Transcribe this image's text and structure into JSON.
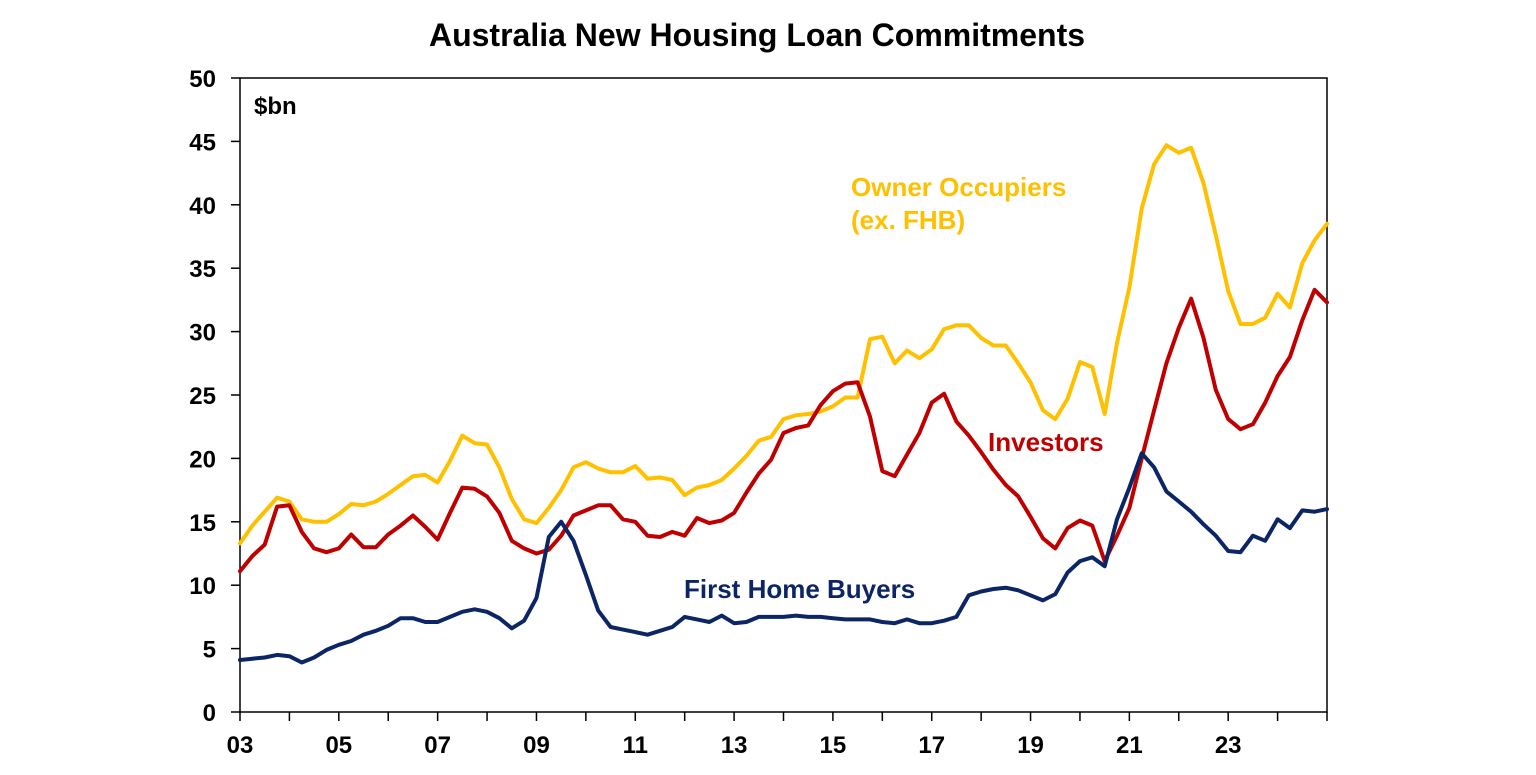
{
  "chart_data": {
    "type": "line",
    "title": "Australia New Housing Loan Commitments",
    "unit_label": "$bn",
    "xlabel": "",
    "ylabel": "",
    "x_tick_labels": [
      "03",
      "05",
      "07",
      "09",
      "11",
      "13",
      "15",
      "17",
      "19",
      "21",
      "23"
    ],
    "x_tick_years": [
      2003,
      2005,
      2007,
      2009,
      2011,
      2013,
      2015,
      2017,
      2019,
      2021,
      2023
    ],
    "xlim": [
      2003,
      2025
    ],
    "ylim": [
      0,
      50
    ],
    "y_ticks": [
      0,
      5,
      10,
      15,
      20,
      25,
      30,
      35,
      40,
      45,
      50
    ],
    "grid": false,
    "legend": "none (inline series labels)",
    "series": [
      {
        "name": "Owner Occupiers (ex. FHB)",
        "label_lines": [
          "Owner Occupiers",
          "(ex. FHB)"
        ],
        "color": "#FFC000",
        "x": [
          2003.0,
          2003.25,
          2003.5,
          2003.75,
          2004.0,
          2004.25,
          2004.5,
          2004.75,
          2005.0,
          2005.25,
          2005.5,
          2005.75,
          2006.0,
          2006.25,
          2006.5,
          2006.75,
          2007.0,
          2007.25,
          2007.5,
          2007.75,
          2008.0,
          2008.25,
          2008.5,
          2008.75,
          2009.0,
          2009.25,
          2009.5,
          2009.75,
          2010.0,
          2010.25,
          2010.5,
          2010.75,
          2011.0,
          2011.25,
          2011.5,
          2011.75,
          2012.0,
          2012.25,
          2012.5,
          2012.75,
          2013.0,
          2013.25,
          2013.5,
          2013.75,
          2014.0,
          2014.25,
          2014.5,
          2014.75,
          2015.0,
          2015.25,
          2015.5,
          2015.75,
          2016.0,
          2016.25,
          2016.5,
          2016.75,
          2017.0,
          2017.25,
          2017.5,
          2017.75,
          2018.0,
          2018.25,
          2018.5,
          2018.75,
          2019.0,
          2019.25,
          2019.5,
          2019.75,
          2020.0,
          2020.25,
          2020.5,
          2020.75,
          2021.0,
          2021.25,
          2021.5,
          2021.75,
          2022.0,
          2022.25,
          2022.5,
          2022.75,
          2023.0,
          2023.25,
          2023.5,
          2023.75,
          2024.0,
          2024.25,
          2024.5,
          2024.75,
          2025.0
        ],
        "values": [
          13.3,
          14.7,
          15.8,
          16.9,
          16.6,
          15.2,
          15.0,
          15.0,
          15.6,
          16.4,
          16.3,
          16.6,
          17.2,
          17.9,
          18.6,
          18.7,
          18.1,
          19.8,
          21.8,
          21.2,
          21.1,
          19.3,
          16.8,
          15.2,
          14.9,
          16.1,
          17.5,
          19.3,
          19.7,
          19.2,
          18.9,
          18.9,
          19.4,
          18.4,
          18.5,
          18.3,
          17.1,
          17.7,
          17.9,
          18.3,
          19.2,
          20.2,
          21.4,
          21.7,
          23.1,
          23.4,
          23.5,
          23.7,
          24.1,
          24.8,
          24.8,
          29.4,
          29.6,
          27.5,
          28.5,
          27.9,
          28.6,
          30.2,
          30.5,
          30.5,
          29.5,
          28.9,
          28.9,
          27.5,
          26.0,
          23.8,
          23.1,
          24.7,
          27.6,
          27.2,
          23.5,
          29.1,
          33.5,
          39.7,
          43.2,
          44.7,
          44.1,
          44.5,
          41.7,
          37.6,
          33.2,
          30.6,
          30.6,
          31.1,
          33.0,
          31.9,
          35.4,
          37.2,
          38.5
        ]
      },
      {
        "name": "Investors",
        "label_lines": [
          "Investors"
        ],
        "color": "#C00000",
        "x": [
          2003.0,
          2003.25,
          2003.5,
          2003.75,
          2004.0,
          2004.25,
          2004.5,
          2004.75,
          2005.0,
          2005.25,
          2005.5,
          2005.75,
          2006.0,
          2006.25,
          2006.5,
          2006.75,
          2007.0,
          2007.25,
          2007.5,
          2007.75,
          2008.0,
          2008.25,
          2008.5,
          2008.75,
          2009.0,
          2009.25,
          2009.5,
          2009.75,
          2010.0,
          2010.25,
          2010.5,
          2010.75,
          2011.0,
          2011.25,
          2011.5,
          2011.75,
          2012.0,
          2012.25,
          2012.5,
          2012.75,
          2013.0,
          2013.25,
          2013.5,
          2013.75,
          2014.0,
          2014.25,
          2014.5,
          2014.75,
          2015.0,
          2015.25,
          2015.5,
          2015.75,
          2016.0,
          2016.25,
          2016.5,
          2016.75,
          2017.0,
          2017.25,
          2017.5,
          2017.75,
          2018.0,
          2018.25,
          2018.5,
          2018.75,
          2019.0,
          2019.25,
          2019.5,
          2019.75,
          2020.0,
          2020.25,
          2020.5,
          2020.75,
          2021.0,
          2021.25,
          2021.5,
          2021.75,
          2022.0,
          2022.25,
          2022.5,
          2022.75,
          2023.0,
          2023.25,
          2023.5,
          2023.75,
          2024.0,
          2024.25,
          2024.5,
          2024.75,
          2025.0
        ],
        "values": [
          11.1,
          12.3,
          13.2,
          16.2,
          16.3,
          14.2,
          12.9,
          12.6,
          12.9,
          14.0,
          13.0,
          13.0,
          14.0,
          14.7,
          15.5,
          14.6,
          13.6,
          15.7,
          17.7,
          17.6,
          17.0,
          15.7,
          13.5,
          12.9,
          12.5,
          12.8,
          13.9,
          15.5,
          15.9,
          16.3,
          16.3,
          15.2,
          15.0,
          13.9,
          13.8,
          14.2,
          13.9,
          15.3,
          14.9,
          15.1,
          15.7,
          17.3,
          18.8,
          19.9,
          22.0,
          22.4,
          22.6,
          24.2,
          25.3,
          25.9,
          26.0,
          23.3,
          19.0,
          18.6,
          20.3,
          22.0,
          24.4,
          25.1,
          22.9,
          21.8,
          20.5,
          19.1,
          17.9,
          17.0,
          15.4,
          13.7,
          12.9,
          14.5,
          15.1,
          14.7,
          11.9,
          13.9,
          16.1,
          20.0,
          23.8,
          27.5,
          30.3,
          32.6,
          29.5,
          25.4,
          23.1,
          22.3,
          22.7,
          24.4,
          26.5,
          28.0,
          30.9,
          33.3,
          32.3
        ]
      },
      {
        "name": "First Home Buyers",
        "label_lines": [
          "First Home Buyers"
        ],
        "color": "#0B2565",
        "x": [
          2003.0,
          2003.25,
          2003.5,
          2003.75,
          2004.0,
          2004.25,
          2004.5,
          2004.75,
          2005.0,
          2005.25,
          2005.5,
          2005.75,
          2006.0,
          2006.25,
          2006.5,
          2006.75,
          2007.0,
          2007.25,
          2007.5,
          2007.75,
          2008.0,
          2008.25,
          2008.5,
          2008.75,
          2009.0,
          2009.25,
          2009.5,
          2009.75,
          2010.0,
          2010.25,
          2010.5,
          2010.75,
          2011.0,
          2011.25,
          2011.5,
          2011.75,
          2012.0,
          2012.25,
          2012.5,
          2012.75,
          2013.0,
          2013.25,
          2013.5,
          2013.75,
          2014.0,
          2014.25,
          2014.5,
          2014.75,
          2015.0,
          2015.25,
          2015.5,
          2015.75,
          2016.0,
          2016.25,
          2016.5,
          2016.75,
          2017.0,
          2017.25,
          2017.5,
          2017.75,
          2018.0,
          2018.25,
          2018.5,
          2018.75,
          2019.0,
          2019.25,
          2019.5,
          2019.75,
          2020.0,
          2020.25,
          2020.5,
          2020.75,
          2021.0,
          2021.25,
          2021.5,
          2021.75,
          2022.0,
          2022.25,
          2022.5,
          2022.75,
          2023.0,
          2023.25,
          2023.5,
          2023.75,
          2024.0,
          2024.25,
          2024.5,
          2024.75,
          2025.0
        ],
        "values": [
          4.1,
          4.2,
          4.3,
          4.5,
          4.4,
          3.9,
          4.3,
          4.9,
          5.3,
          5.6,
          6.1,
          6.4,
          6.8,
          7.4,
          7.4,
          7.1,
          7.1,
          7.5,
          7.9,
          8.1,
          7.9,
          7.4,
          6.6,
          7.2,
          9.0,
          13.8,
          15.0,
          13.5,
          10.8,
          8.0,
          6.7,
          6.5,
          6.3,
          6.1,
          6.4,
          6.7,
          7.5,
          7.3,
          7.1,
          7.6,
          7.0,
          7.1,
          7.5,
          7.5,
          7.5,
          7.6,
          7.5,
          7.5,
          7.4,
          7.3,
          7.3,
          7.3,
          7.1,
          7.0,
          7.3,
          7.0,
          7.0,
          7.2,
          7.5,
          9.2,
          9.5,
          9.7,
          9.8,
          9.6,
          9.2,
          8.8,
          9.3,
          11.0,
          11.9,
          12.2,
          11.5,
          15.2,
          17.7,
          20.4,
          19.3,
          17.4,
          16.6,
          15.8,
          14.8,
          13.9,
          12.7,
          12.6,
          13.9,
          13.5,
          15.2,
          14.5,
          15.9,
          15.8,
          16.0
        ]
      }
    ]
  }
}
